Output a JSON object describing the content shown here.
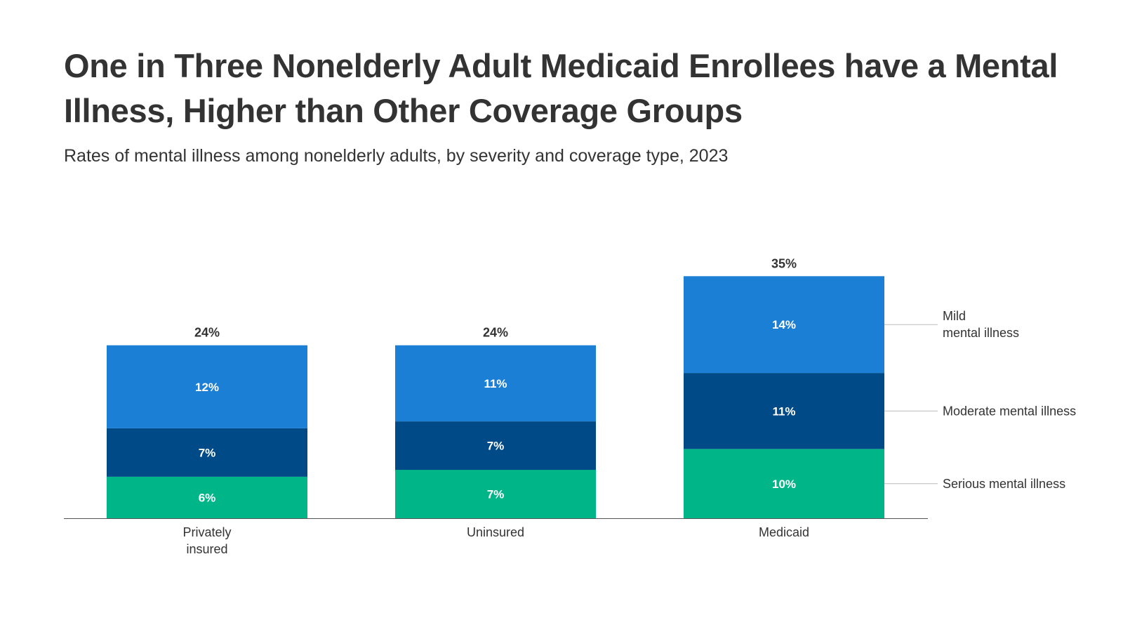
{
  "title": "One in Three Nonelderly Adult Medicaid Enrollees have a Mental Illness, Higher than Other Coverage Groups",
  "subtitle": "Rates of mental illness among nonelderly adults, by severity and coverage type, 2023",
  "chart_data": {
    "type": "bar",
    "stacked": true,
    "categories": [
      "Privately\ninsured",
      "Uninsured",
      "Medicaid"
    ],
    "series": [
      {
        "name": "Serious mental illness",
        "values": [
          6,
          7,
          10
        ],
        "labels": [
          "6%",
          "7%",
          "10%"
        ],
        "color": "#00B689"
      },
      {
        "name": "Moderate mental illness",
        "values": [
          7,
          7,
          11
        ],
        "labels": [
          "7%",
          "7%",
          "11%"
        ],
        "color": "#004A87"
      },
      {
        "name": "Mild\nmental illness",
        "values": [
          12,
          11,
          14
        ],
        "labels": [
          "12%",
          "11%",
          "14%"
        ],
        "color": "#1C7FD6"
      }
    ],
    "totals": [
      24,
      24,
      35
    ],
    "total_labels": [
      "24%",
      "24%",
      "35%"
    ],
    "ylim": [
      0,
      35
    ],
    "legend": "right, labels aligned to Medicaid bar segments",
    "grid": false,
    "xlabel": "",
    "ylabel": ""
  },
  "colors": {
    "text": "#333333",
    "axis": "#555555",
    "leader": "#bbbbbb",
    "segment_label": "#ffffff"
  }
}
